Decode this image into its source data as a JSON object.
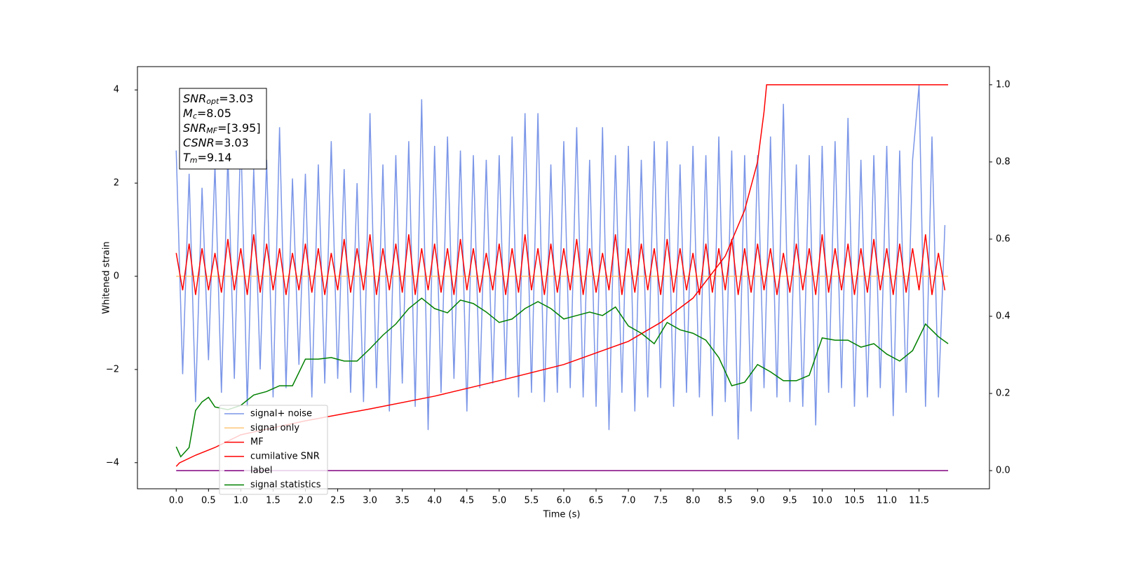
{
  "chart_data": {
    "type": "line",
    "xlabel": "Time (s)",
    "ylabel": "Whitened strain",
    "xlim": [
      -0.6,
      12.59
    ],
    "ylim": [
      -4.56,
      4.5
    ],
    "y2lim": [
      -0.047,
      1.047
    ],
    "xticks": [
      {
        "value": 0,
        "label": "0.0"
      },
      0.5,
      {
        "value": 1,
        "label": "1.0"
      },
      1.5,
      {
        "value": 2,
        "label": "2.0"
      },
      2.5,
      {
        "value": 3,
        "label": "3.0"
      },
      3.5,
      {
        "value": 4,
        "label": "4.0"
      },
      4.5,
      {
        "value": 5,
        "label": "5.0"
      },
      5.5,
      {
        "value": 6,
        "label": "6.0"
      },
      6.5,
      {
        "value": 7,
        "label": "7.0"
      },
      7.5,
      {
        "value": 8,
        "label": "8.0"
      },
      8.5,
      {
        "value": 9,
        "label": "9.0"
      },
      9.5,
      {
        "value": 10,
        "label": "10.0"
      },
      10.5,
      {
        "value": 11,
        "label": "11.0"
      },
      11.5
    ],
    "yticks": [
      {
        "value": -4,
        "label": "−4"
      },
      {
        "value": -2,
        "label": "−2"
      },
      0,
      2,
      4
    ],
    "y2ticks": [
      {
        "value": 0,
        "label": "0.0"
      },
      0.2,
      0.4,
      0.6,
      0.8,
      {
        "value": 1,
        "label": "1.0"
      }
    ],
    "legend": "lower left",
    "annotations": [
      {
        "text": "SNR",
        "sub": "opt",
        "rest": "=3.03"
      },
      {
        "text": "M",
        "sub": "c",
        "rest": "=8.05"
      },
      {
        "text": "SNR",
        "sub": "MF",
        "rest": "=[3.95]"
      },
      {
        "text": "CSNR",
        "rest": "=3.03"
      },
      {
        "text": "T",
        "sub": "m",
        "rest": "=9.14"
      }
    ],
    "x": [
      0.0,
      0.1,
      0.2,
      0.3,
      0.4,
      0.5,
      0.6,
      0.7,
      0.8,
      0.9,
      1.0,
      1.1,
      1.2,
      1.3,
      1.4,
      1.5,
      1.6,
      1.7,
      1.8,
      1.9,
      2.0,
      2.1,
      2.2,
      2.3,
      2.4,
      2.5,
      2.6,
      2.7,
      2.8,
      2.9,
      3.0,
      3.1,
      3.2,
      3.3,
      3.4,
      3.5,
      3.6,
      3.7,
      3.8,
      3.9,
      4.0,
      4.1,
      4.2,
      4.3,
      4.4,
      4.5,
      4.6,
      4.7,
      4.8,
      4.9,
      5.0,
      5.1,
      5.2,
      5.3,
      5.4,
      5.5,
      5.6,
      5.7,
      5.8,
      5.9,
      6.0,
      6.1,
      6.2,
      6.3,
      6.4,
      6.5,
      6.6,
      6.7,
      6.8,
      6.9,
      7.0,
      7.1,
      7.2,
      7.3,
      7.4,
      7.5,
      7.6,
      7.7,
      7.8,
      7.9,
      8.0,
      8.1,
      8.2,
      8.3,
      8.4,
      8.5,
      8.6,
      8.7,
      8.8,
      8.9,
      9.0,
      9.1,
      9.2,
      9.3,
      9.4,
      9.5,
      9.6,
      9.7,
      9.8,
      9.9,
      10.0,
      10.1,
      10.2,
      10.3,
      10.4,
      10.5,
      10.6,
      10.7,
      10.8,
      10.9,
      11.0,
      11.1,
      11.2,
      11.3,
      11.4,
      11.5,
      11.6,
      11.7,
      11.8,
      11.9
    ],
    "series": [
      {
        "name": "signal+ noise",
        "color": "#7b96e8",
        "values": [
          2.7,
          -2.1,
          2.2,
          -2.7,
          1.9,
          -1.8,
          2.4,
          -2.5,
          2.6,
          -2.2,
          3.1,
          -2.8,
          2.3,
          -2.0,
          2.5,
          -2.6,
          3.2,
          -2.4,
          2.1,
          -1.9,
          2.2,
          -2.6,
          2.4,
          -2.3,
          2.9,
          -2.2,
          2.3,
          -2.5,
          2.0,
          -2.7,
          3.5,
          -2.4,
          2.4,
          -2.9,
          2.6,
          -2.3,
          2.9,
          -2.8,
          3.8,
          -3.3,
          2.8,
          -2.5,
          3.0,
          -2.2,
          2.7,
          -2.9,
          2.6,
          -2.4,
          2.5,
          -2.3,
          2.6,
          -2.2,
          3.0,
          -2.6,
          3.5,
          -2.5,
          3.5,
          -2.7,
          2.4,
          -2.5,
          2.9,
          -2.4,
          3.2,
          -2.6,
          2.5,
          -2.8,
          3.2,
          -3.3,
          2.6,
          -2.5,
          2.8,
          -2.9,
          2.5,
          -2.6,
          2.9,
          -2.4,
          2.9,
          -2.8,
          2.4,
          -2.5,
          2.8,
          -2.6,
          2.6,
          -3.0,
          3.0,
          -2.7,
          2.7,
          -3.5,
          2.6,
          -2.9,
          2.6,
          -2.4,
          3.0,
          -2.6,
          3.7,
          -2.7,
          2.4,
          -2.8,
          2.6,
          -3.2,
          2.8,
          -2.5,
          2.9,
          -2.4,
          3.4,
          -2.8,
          2.5,
          -2.6,
          2.6,
          -2.4,
          2.8,
          -3.0,
          2.7,
          -2.5,
          2.5,
          4.1,
          -2.8,
          3.0,
          -2.6,
          1.1
        ]
      },
      {
        "name": "signal only",
        "color": "#ffc77a",
        "x": [
          0.0,
          11.95
        ],
        "values": [
          0,
          0
        ]
      },
      {
        "name": "MF",
        "color": "#ff0000",
        "values": [
          0.5,
          -0.3,
          0.7,
          -0.4,
          0.6,
          -0.3,
          0.5,
          -0.35,
          0.8,
          -0.3,
          0.6,
          -0.4,
          0.9,
          -0.35,
          0.7,
          -0.3,
          0.6,
          -0.4,
          0.5,
          -0.3,
          0.7,
          -0.35,
          0.6,
          -0.4,
          0.5,
          -0.3,
          0.8,
          -0.35,
          0.6,
          -0.3,
          0.9,
          -0.4,
          0.6,
          -0.3,
          0.7,
          -0.35,
          0.9,
          -0.4,
          0.6,
          -0.3,
          0.7,
          -0.35,
          0.6,
          -0.4,
          0.8,
          -0.3,
          0.6,
          -0.35,
          0.5,
          -0.3,
          0.7,
          -0.4,
          0.6,
          -0.35,
          0.9,
          -0.3,
          0.6,
          -0.4,
          0.7,
          -0.35,
          0.6,
          -0.3,
          0.8,
          -0.4,
          0.6,
          -0.35,
          0.5,
          -0.3,
          0.9,
          -0.4,
          0.6,
          -0.35,
          0.7,
          -0.3,
          0.6,
          -0.4,
          0.8,
          -0.35,
          0.6,
          -0.3,
          0.5,
          -0.4,
          0.7,
          -0.35,
          0.6,
          -0.3,
          0.8,
          -0.4,
          0.6,
          -0.35,
          0.7,
          -0.3,
          0.6,
          -0.4,
          0.5,
          -0.35,
          0.7,
          -0.3,
          0.6,
          -0.4,
          0.9,
          -0.35,
          0.6,
          -0.3,
          0.7,
          -0.4,
          0.6,
          -0.35,
          0.8,
          -0.3,
          0.6,
          -0.4,
          0.7,
          -0.35,
          0.6,
          -0.3,
          0.9,
          -0.4,
          0.5,
          -0.3
        ]
      },
      {
        "name": "cumilative SNR",
        "color": "#ff0000",
        "axis": "y2",
        "x": [
          0.0,
          0.05,
          0.3,
          0.6,
          1.0,
          2.0,
          3.0,
          4.0,
          5.0,
          6.0,
          7.0,
          7.5,
          8.0,
          8.5,
          8.8,
          9.0,
          9.1,
          9.14,
          11.95
        ],
        "values": [
          0.011,
          0.02,
          0.04,
          0.06,
          0.093,
          0.129,
          0.16,
          0.193,
          0.233,
          0.275,
          0.335,
          0.384,
          0.447,
          0.556,
          0.675,
          0.8,
          0.93,
          1.0,
          1.0
        ]
      },
      {
        "name": "label",
        "color": "#800080",
        "axis": "y2",
        "x": [
          0.0,
          11.95
        ],
        "values": [
          0,
          0
        ]
      },
      {
        "name": "signal statistics",
        "color": "#008000",
        "axis": "y2",
        "x": [
          0.0,
          0.07,
          0.2,
          0.3,
          0.4,
          0.5,
          0.6,
          0.8,
          1.0,
          1.2,
          1.4,
          1.6,
          1.8,
          2.0,
          2.2,
          2.4,
          2.6,
          2.8,
          3.0,
          3.2,
          3.4,
          3.6,
          3.8,
          4.0,
          4.2,
          4.4,
          4.6,
          4.8,
          5.0,
          5.2,
          5.4,
          5.6,
          5.8,
          6.0,
          6.2,
          6.4,
          6.6,
          6.8,
          7.0,
          7.2,
          7.4,
          7.6,
          7.8,
          8.0,
          8.2,
          8.4,
          8.6,
          8.8,
          9.0,
          9.2,
          9.4,
          9.6,
          9.8,
          10.0,
          10.2,
          10.4,
          10.6,
          10.8,
          11.0,
          11.2,
          11.4,
          11.6,
          11.8,
          11.95
        ],
        "values": [
          0.062,
          0.036,
          0.06,
          0.156,
          0.178,
          0.19,
          0.165,
          0.158,
          0.169,
          0.196,
          0.205,
          0.22,
          0.22,
          0.289,
          0.289,
          0.293,
          0.284,
          0.284,
          0.316,
          0.351,
          0.38,
          0.42,
          0.447,
          0.42,
          0.409,
          0.442,
          0.433,
          0.411,
          0.384,
          0.393,
          0.42,
          0.438,
          0.42,
          0.393,
          0.402,
          0.411,
          0.402,
          0.424,
          0.375,
          0.356,
          0.329,
          0.384,
          0.365,
          0.356,
          0.338,
          0.293,
          0.22,
          0.229,
          0.275,
          0.256,
          0.233,
          0.233,
          0.247,
          0.344,
          0.338,
          0.338,
          0.32,
          0.329,
          0.302,
          0.284,
          0.311,
          0.38,
          0.347,
          0.329
        ]
      }
    ]
  }
}
